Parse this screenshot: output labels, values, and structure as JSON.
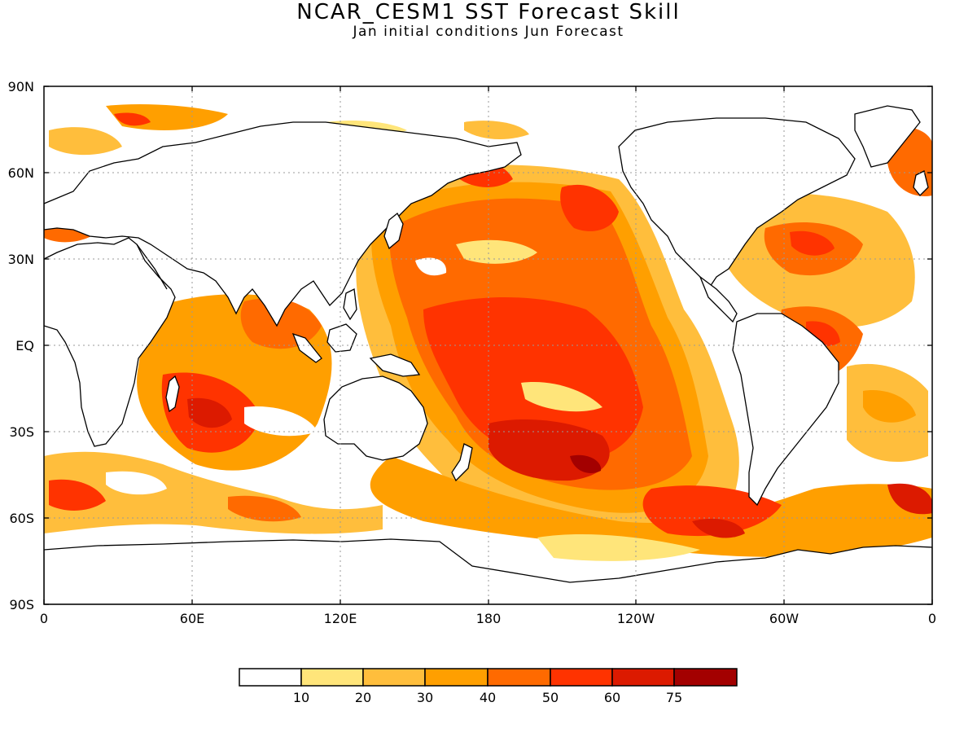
{
  "header": {
    "title": "NCAR_CESM1 SST Forecast Skill",
    "subtitle": "Jan initial conditions   Jun Forecast"
  },
  "axes": {
    "lat_labels": [
      "90N",
      "60N",
      "30N",
      "EQ",
      "30S",
      "60S",
      "90S"
    ],
    "lat_values": [
      90,
      60,
      30,
      0,
      -30,
      -60,
      -90
    ],
    "lon_labels": [
      "0",
      "60E",
      "120E",
      "180",
      "120W",
      "60W",
      "0"
    ],
    "lon_values": [
      0,
      60,
      120,
      180,
      240,
      300,
      360
    ],
    "grid": "dotted"
  },
  "colorbar": {
    "bounds": [
      "10",
      "20",
      "30",
      "40",
      "50",
      "60",
      "75"
    ],
    "colors": [
      "#ffffff",
      "#ffe57a",
      "#ffbe3c",
      "#ff9f00",
      "#ff6a00",
      "#ff3300",
      "#dc1a00",
      "#a30000"
    ]
  },
  "colors": {
    "land": "#ffffff",
    "coast": "#000000",
    "skill_low": "#ffe57a",
    "skill_mid": "#ff9f00",
    "skill_high": "#ff3300",
    "skill_max": "#a30000"
  }
}
